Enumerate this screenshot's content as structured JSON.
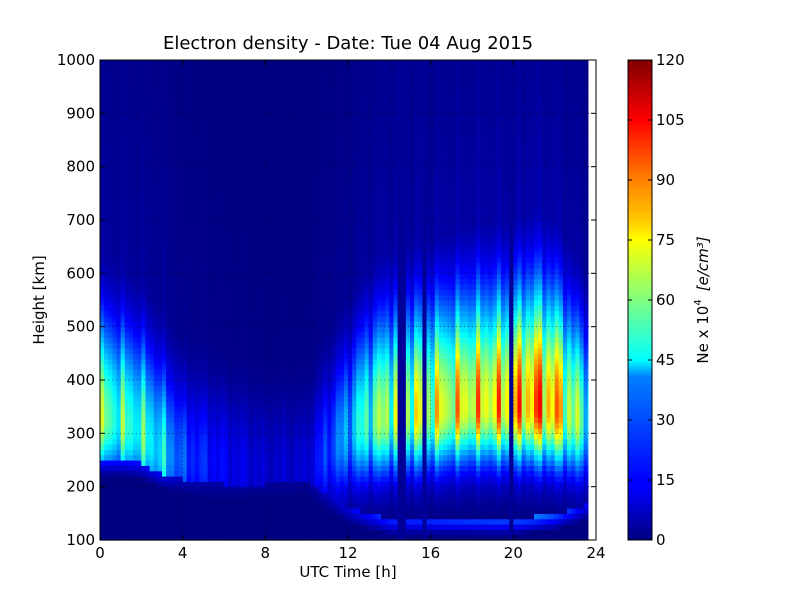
{
  "chart_data": {
    "type": "heatmap",
    "title": "Electron density - Date: Tue 04 Aug 2015",
    "xlabel": "UTC Time [h]",
    "ylabel": "Height [km]",
    "xlim": [
      0,
      24
    ],
    "ylim": [
      100,
      1000
    ],
    "x_ticks": [
      "0",
      "4",
      "8",
      "12",
      "16",
      "20",
      "24"
    ],
    "y_ticks": [
      "100",
      "200",
      "300",
      "400",
      "500",
      "600",
      "700",
      "800",
      "900",
      "1000"
    ],
    "grid": true,
    "data_x_extent": [
      0,
      23.6
    ],
    "colorbar": {
      "label_prefix": "Ne x 10",
      "label_exponent": "4",
      "label_units": "[e/cm³]",
      "range": [
        0,
        120
      ],
      "ticks": [
        "0",
        "15",
        "30",
        "45",
        "60",
        "75",
        "90",
        "105",
        "120"
      ],
      "colormap": "jet"
    },
    "density_profiles": [
      {
        "time_h": 0,
        "peak_height_km": 330,
        "peak_value": 75,
        "lower_edge_km": 250
      },
      {
        "time_h": 1,
        "peak_height_km": 320,
        "peak_value": 70,
        "lower_edge_km": 250
      },
      {
        "time_h": 2,
        "peak_height_km": 300,
        "peak_value": 65,
        "lower_edge_km": 245
      },
      {
        "time_h": 3,
        "peak_height_km": 260,
        "peak_value": 55,
        "lower_edge_km": 225
      },
      {
        "time_h": 4,
        "peak_height_km": 250,
        "peak_value": 30,
        "lower_edge_km": 215
      },
      {
        "time_h": 6,
        "peak_height_km": 240,
        "peak_value": 18,
        "lower_edge_km": 205
      },
      {
        "time_h": 8,
        "peak_height_km": 230,
        "peak_value": 12,
        "lower_edge_km": 205
      },
      {
        "time_h": 10,
        "peak_height_km": 230,
        "peak_value": 12,
        "lower_edge_km": 210
      },
      {
        "time_h": 12,
        "peak_height_km": 300,
        "peak_value": 45,
        "lower_edge_km": 160
      },
      {
        "time_h": 13,
        "peak_height_km": 320,
        "peak_value": 70,
        "lower_edge_km": 150
      },
      {
        "time_h": 14,
        "peak_height_km": 330,
        "peak_value": 85,
        "lower_edge_km": 140
      },
      {
        "time_h": 16,
        "peak_height_km": 340,
        "peak_value": 90,
        "lower_edge_km": 140
      },
      {
        "time_h": 18,
        "peak_height_km": 350,
        "peak_value": 100,
        "lower_edge_km": 140
      },
      {
        "time_h": 20,
        "peak_height_km": 350,
        "peak_value": 105,
        "lower_edge_km": 140
      },
      {
        "time_h": 21,
        "peak_height_km": 350,
        "peak_value": 118,
        "lower_edge_km": 145
      },
      {
        "time_h": 22,
        "peak_height_km": 345,
        "peak_value": 110,
        "lower_edge_km": 150
      },
      {
        "time_h": 23,
        "peak_height_km": 330,
        "peak_value": 80,
        "lower_edge_km": 160
      },
      {
        "time_h": 23.6,
        "peak_height_km": 320,
        "peak_value": 60,
        "lower_edge_km": 170
      }
    ],
    "data_gaps_h": [
      14.6,
      15.7,
      19.9
    ]
  }
}
